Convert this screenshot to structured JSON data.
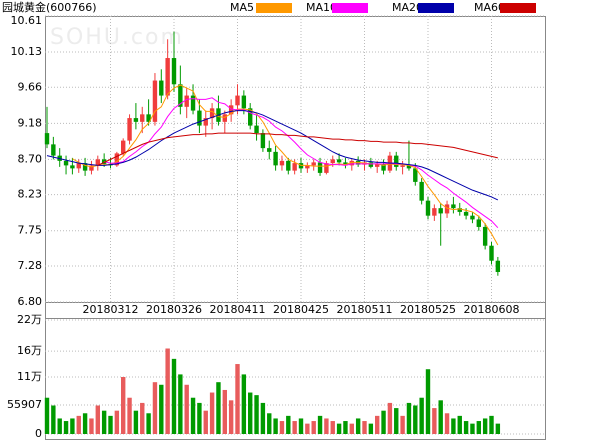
{
  "chart_data": [
    {
      "type": "candlestick",
      "title": "园城黄金(600766)",
      "watermark": "SOHU.com",
      "legend": "top-right",
      "grid": true,
      "up_color": "#f03c3c",
      "down_color": "#009a00",
      "x": [
        null,
        null,
        null,
        null,
        null,
        null,
        null,
        null,
        null,
        null,
        "20180312",
        null,
        null,
        null,
        null,
        null,
        null,
        null,
        null,
        null,
        "20180326",
        null,
        null,
        null,
        null,
        null,
        null,
        null,
        null,
        null,
        "20180411",
        null,
        null,
        null,
        null,
        null,
        null,
        null,
        null,
        null,
        "20180425",
        null,
        null,
        null,
        null,
        null,
        null,
        null,
        null,
        null,
        "20180511",
        null,
        null,
        null,
        null,
        null,
        null,
        null,
        null,
        null,
        "20180525",
        null,
        null,
        null,
        null,
        null,
        null,
        null,
        null,
        null,
        "20180608",
        null
      ],
      "open": [
        9.05,
        8.9,
        8.75,
        8.68,
        8.62,
        8.58,
        8.65,
        8.55,
        8.62,
        8.7,
        8.64,
        8.62,
        8.78,
        8.95,
        9.25,
        9.2,
        9.3,
        9.2,
        9.75,
        9.55,
        10.05,
        9.7,
        9.4,
        9.55,
        9.35,
        9.15,
        9.25,
        9.38,
        9.2,
        9.3,
        9.42,
        9.55,
        9.38,
        9.15,
        9.05,
        8.85,
        8.8,
        8.62,
        8.68,
        8.55,
        8.65,
        8.58,
        8.62,
        8.66,
        8.52,
        8.65,
        8.7,
        8.66,
        8.62,
        8.68,
        8.63,
        8.66,
        8.6,
        8.64,
        8.55,
        8.75,
        8.6,
        8.62,
        8.58,
        8.4,
        8.15,
        7.95,
        8.05,
        7.98,
        8.1,
        8.05,
        8.0,
        7.95,
        7.9,
        7.8,
        7.55,
        7.35
      ],
      "high": [
        9.4,
        9.0,
        8.85,
        8.75,
        8.72,
        8.7,
        8.72,
        8.68,
        8.75,
        8.78,
        8.72,
        8.8,
        8.98,
        9.3,
        9.45,
        9.4,
        9.5,
        9.85,
        9.9,
        10.3,
        10.4,
        9.95,
        9.65,
        9.7,
        9.5,
        9.35,
        9.45,
        9.55,
        9.35,
        9.5,
        9.7,
        9.62,
        9.45,
        9.3,
        9.1,
        8.95,
        8.88,
        8.75,
        8.72,
        8.7,
        8.72,
        8.66,
        8.7,
        8.72,
        8.68,
        8.75,
        8.78,
        8.72,
        8.7,
        8.74,
        8.7,
        8.72,
        8.68,
        8.7,
        8.8,
        8.8,
        8.68,
        8.95,
        8.65,
        8.45,
        8.2,
        8.1,
        8.12,
        8.15,
        8.2,
        8.12,
        8.05,
        8.0,
        7.95,
        7.85,
        7.6,
        7.4
      ],
      "low": [
        8.85,
        8.7,
        8.6,
        8.5,
        8.5,
        8.52,
        8.48,
        8.5,
        8.55,
        8.6,
        8.58,
        8.6,
        8.75,
        8.9,
        9.1,
        9.05,
        9.15,
        9.15,
        9.45,
        9.5,
        9.6,
        9.3,
        9.25,
        9.3,
        9.05,
        9.0,
        9.1,
        9.15,
        9.05,
        9.2,
        9.3,
        9.3,
        9.1,
        8.95,
        8.8,
        8.7,
        8.55,
        8.55,
        8.5,
        8.5,
        8.52,
        8.52,
        8.55,
        8.48,
        8.5,
        8.6,
        8.62,
        8.58,
        8.55,
        8.6,
        8.55,
        8.58,
        8.52,
        8.5,
        8.52,
        8.55,
        8.5,
        8.55,
        8.35,
        8.1,
        7.9,
        7.88,
        7.55,
        7.92,
        7.98,
        7.95,
        7.9,
        7.85,
        7.75,
        7.5,
        7.3,
        7.15
      ],
      "close": [
        8.9,
        8.75,
        8.68,
        8.62,
        8.58,
        8.65,
        8.55,
        8.62,
        8.7,
        8.64,
        8.62,
        8.78,
        8.95,
        9.25,
        9.2,
        9.3,
        9.2,
        9.75,
        9.55,
        10.05,
        9.7,
        9.4,
        9.55,
        9.35,
        9.15,
        9.25,
        9.38,
        9.2,
        9.3,
        9.42,
        9.55,
        9.38,
        9.15,
        9.05,
        8.85,
        8.8,
        8.62,
        8.68,
        8.55,
        8.65,
        8.58,
        8.62,
        8.66,
        8.52,
        8.65,
        8.7,
        8.66,
        8.62,
        8.68,
        8.63,
        8.66,
        8.6,
        8.64,
        8.55,
        8.75,
        8.6,
        8.62,
        8.58,
        8.4,
        8.15,
        7.95,
        8.05,
        7.98,
        8.1,
        8.05,
        8.0,
        7.95,
        7.9,
        7.8,
        7.55,
        7.35,
        7.2
      ],
      "series": [
        {
          "name": "MA5",
          "color": "#ff9900",
          "values": [
            null,
            null,
            null,
            null,
            8.71,
            8.66,
            8.62,
            8.6,
            8.62,
            8.63,
            8.63,
            8.67,
            8.74,
            8.85,
            8.96,
            9.1,
            9.18,
            9.34,
            9.4,
            9.57,
            9.65,
            9.69,
            9.65,
            9.61,
            9.43,
            9.34,
            9.34,
            9.27,
            9.26,
            9.31,
            9.37,
            9.37,
            9.36,
            9.31,
            9.2,
            9.05,
            8.89,
            8.8,
            8.7,
            8.66,
            8.62,
            8.62,
            8.61,
            8.61,
            8.61,
            8.63,
            8.64,
            8.63,
            8.66,
            8.66,
            8.65,
            8.64,
            8.64,
            8.62,
            8.64,
            8.63,
            8.63,
            8.62,
            8.59,
            8.47,
            8.34,
            8.23,
            8.11,
            8.05,
            8.03,
            8.04,
            8.02,
            8.0,
            7.94,
            7.84,
            7.71,
            7.56
          ]
        },
        {
          "name": "MA10",
          "color": "#ff00ff",
          "values": [
            null,
            null,
            null,
            null,
            null,
            null,
            null,
            null,
            null,
            8.67,
            8.65,
            8.65,
            8.67,
            8.74,
            8.8,
            8.87,
            8.93,
            9.04,
            9.13,
            9.27,
            9.38,
            9.44,
            9.5,
            9.51,
            9.5,
            9.5,
            9.52,
            9.46,
            9.44,
            9.37,
            9.36,
            9.36,
            9.32,
            9.29,
            9.26,
            9.21,
            9.13,
            9.08,
            9.01,
            8.93,
            8.84,
            8.76,
            8.71,
            8.66,
            8.64,
            8.63,
            8.63,
            8.62,
            8.64,
            8.64,
            8.64,
            8.64,
            8.64,
            8.64,
            8.65,
            8.64,
            8.64,
            8.63,
            8.61,
            8.56,
            8.49,
            8.43,
            8.37,
            8.32,
            8.25,
            8.19,
            8.13,
            8.06,
            8.0,
            7.94,
            7.88,
            7.79
          ]
        },
        {
          "name": "MA20",
          "color": "#0000aa",
          "values": [
            8.75,
            8.73,
            8.71,
            8.69,
            8.67,
            8.65,
            8.64,
            8.63,
            8.62,
            8.62,
            8.63,
            8.64,
            8.66,
            8.69,
            8.73,
            8.78,
            8.83,
            8.89,
            8.95,
            9.0,
            9.05,
            9.09,
            9.13,
            9.17,
            9.2,
            9.23,
            9.26,
            9.29,
            9.32,
            9.34,
            9.35,
            9.35,
            9.34,
            9.32,
            9.29,
            9.25,
            9.21,
            9.17,
            9.13,
            9.09,
            9.05,
            9.0,
            8.95,
            8.9,
            8.85,
            8.8,
            8.76,
            8.73,
            8.71,
            8.69,
            8.68,
            8.67,
            8.66,
            8.66,
            8.65,
            8.65,
            8.64,
            8.63,
            8.62,
            8.6,
            8.57,
            8.53,
            8.49,
            8.45,
            8.41,
            8.37,
            8.33,
            8.29,
            8.26,
            8.23,
            8.2,
            8.16
          ]
        },
        {
          "name": "MA60",
          "color": "#cc0000",
          "values": [
            null,
            null,
            null,
            null,
            null,
            null,
            null,
            null,
            8.62,
            8.66,
            8.7,
            8.74,
            8.78,
            8.82,
            8.86,
            8.9,
            8.93,
            8.95,
            8.97,
            8.99,
            9.0,
            9.01,
            9.02,
            9.03,
            9.03,
            9.04,
            9.04,
            9.05,
            9.05,
            9.05,
            9.05,
            9.05,
            9.05,
            9.04,
            9.04,
            9.04,
            9.03,
            9.03,
            9.02,
            9.02,
            9.01,
            9.0,
            9.0,
            8.99,
            8.98,
            8.97,
            8.97,
            8.96,
            8.96,
            8.95,
            8.95,
            8.94,
            8.94,
            8.93,
            8.93,
            8.93,
            8.92,
            8.92,
            8.91,
            8.91,
            8.9,
            8.89,
            8.88,
            8.87,
            8.86,
            8.84,
            8.82,
            8.8,
            8.78,
            8.76,
            8.74,
            8.72
          ]
        }
      ],
      "ylim": [
        6.8,
        10.61
      ],
      "yticks": [
        {
          "value": 6.8,
          "label": "6.80"
        },
        7.28,
        7.75,
        8.23,
        {
          "value": 8.7,
          "label": "8.70"
        },
        9.18,
        9.66,
        10.13,
        10.61
      ]
    },
    {
      "type": "bar",
      "grid": true,
      "up_color": "#e85c5c",
      "down_color": "#009a00",
      "values": [
        70000,
        55000,
        30000,
        25000,
        30000,
        35000,
        40000,
        30000,
        55000,
        45000,
        35000,
        45000,
        110000,
        70000,
        45000,
        60000,
        40000,
        100000,
        95000,
        165000,
        145000,
        115000,
        95000,
        70000,
        60000,
        45000,
        80000,
        100000,
        85000,
        65000,
        135000,
        115000,
        80000,
        75000,
        60000,
        40000,
        30000,
        25000,
        35000,
        25000,
        30000,
        20000,
        25000,
        35000,
        30000,
        25000,
        20000,
        25000,
        20000,
        30000,
        25000,
        20000,
        35000,
        45000,
        60000,
        50000,
        35000,
        60000,
        55000,
        70000,
        125000,
        50000,
        65000,
        40000,
        30000,
        35000,
        25000,
        20000,
        25000,
        30000,
        35000,
        20000
      ],
      "ylim": [
        0,
        220000
      ],
      "yticks": [
        0,
        55907,
        {
          "value": 110000,
          "label": "11万"
        },
        {
          "value": 160000,
          "label": "16万"
        },
        {
          "value": 220000,
          "label": "22万"
        }
      ]
    }
  ]
}
